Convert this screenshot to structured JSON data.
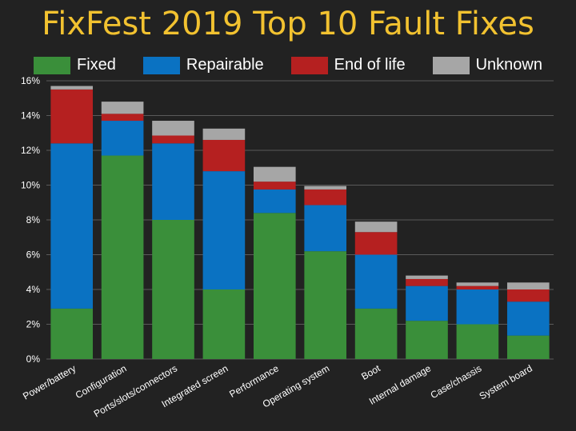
{
  "title": "FixFest 2019 Top 10 Fault Fixes",
  "chart_data": {
    "type": "bar",
    "stacked": true,
    "categories": [
      "Power/battery",
      "Configuration",
      "Ports/slots/connectors",
      "Integrated screen",
      "Performance",
      "Operating system",
      "Boot",
      "Internal damage",
      "Case/chassis",
      "System board"
    ],
    "series": [
      {
        "name": "Fixed",
        "color": "#3a8f3a",
        "values": [
          2.9,
          11.7,
          8.0,
          4.0,
          8.4,
          6.2,
          2.9,
          2.2,
          2.0,
          1.35
        ]
      },
      {
        "name": "Repairable",
        "color": "#0a72c2",
        "values": [
          9.5,
          2.0,
          4.4,
          6.8,
          1.35,
          2.65,
          3.1,
          2.0,
          2.0,
          1.95
        ]
      },
      {
        "name": "End of life",
        "color": "#b52020",
        "values": [
          3.1,
          0.4,
          0.45,
          1.8,
          0.45,
          0.9,
          1.3,
          0.4,
          0.2,
          0.7
        ]
      },
      {
        "name": "Unknown",
        "color": "#a6a6a6",
        "values": [
          0.2,
          0.7,
          0.85,
          0.65,
          0.85,
          0.2,
          0.6,
          0.2,
          0.2,
          0.4
        ]
      }
    ],
    "ylim": [
      0,
      16
    ],
    "yticks": [
      0,
      2,
      4,
      6,
      8,
      10,
      12,
      14,
      16
    ],
    "ytick_labels": [
      "0%",
      "2%",
      "4%",
      "6%",
      "8%",
      "10%",
      "12%",
      "14%",
      "16%"
    ],
    "grid": true,
    "legend_position": "top"
  }
}
